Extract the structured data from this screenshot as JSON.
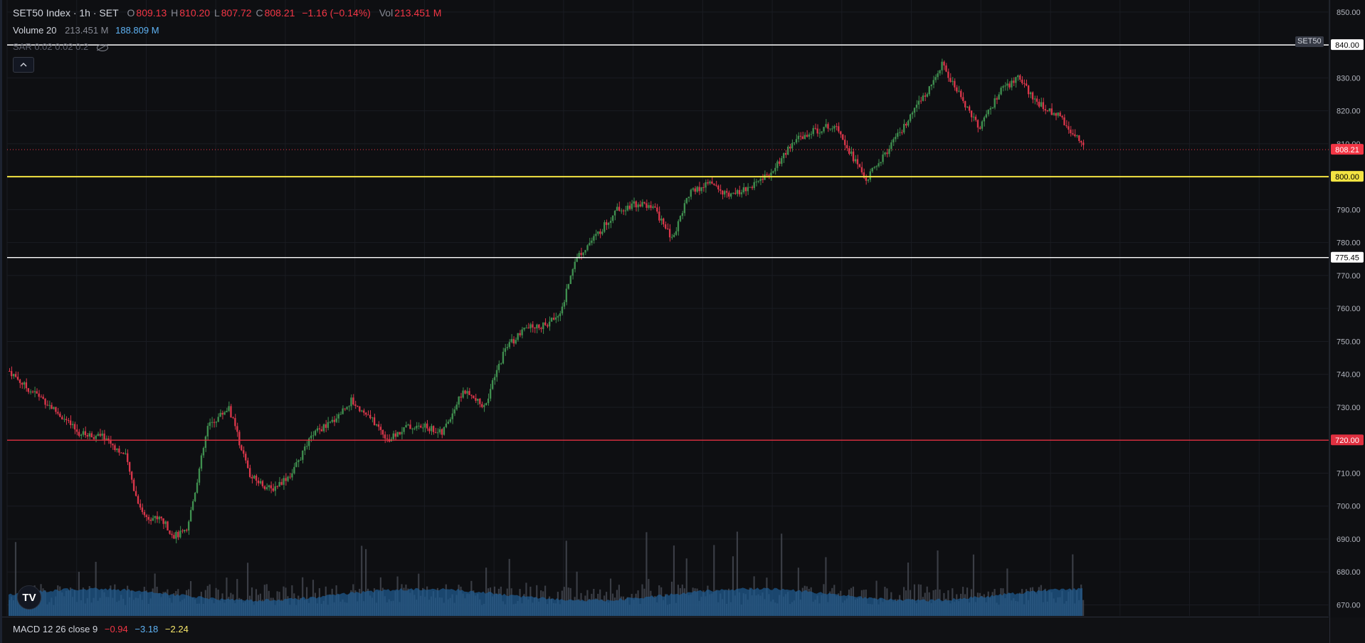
{
  "header": {
    "symbol": "SET50 Index · 1h · SET",
    "o_label": "O",
    "o": "809.13",
    "h_label": "H",
    "h": "810.20",
    "l_label": "L",
    "l": "807.72",
    "c_label": "C",
    "c": "808.21",
    "change": "−1.16 (−0.14%)",
    "vol_label": "Vol",
    "vol": "213.451 M"
  },
  "volume_legend": {
    "label": "Volume 20",
    "value1": "213.451 M",
    "value2": "188.809 M"
  },
  "sar_legend": {
    "label": "SAR 0.02 0.02 0.2"
  },
  "macd_legend": {
    "label": "MACD 12 26 close 9",
    "v1": "−0.94",
    "v2": "−3.18",
    "v3": "−2.24"
  },
  "symbol_tag": "SET50",
  "logo_text": "TV",
  "colors": {
    "up": "#26a69a",
    "up_candle": "#3f8f4f",
    "down": "#d9364a",
    "volume": "#4a4e57",
    "volume_ma": "#1f5e96",
    "line_white": "#ffffff",
    "line_yellow": "#f4e442",
    "line_red": "#e03040",
    "last_price": "#f23645"
  },
  "chart_data": {
    "type": "candlestick",
    "y_axis_ticks": [
      "850.00",
      "840.00",
      "830.00",
      "820.00",
      "810.00",
      "800.00",
      "790.00",
      "780.00",
      "770.00",
      "760.00",
      "750.00",
      "740.00",
      "730.00",
      "720.00",
      "710.00",
      "700.00",
      "690.00",
      "680.00",
      "670.00"
    ],
    "ylim": [
      666,
      853
    ],
    "grid": true,
    "horizontal_lines": [
      {
        "price": 840.0,
        "label": "840.00",
        "color": "white"
      },
      {
        "price": 800.0,
        "label": "800.00",
        "color": "yellow"
      },
      {
        "price": 775.45,
        "label": "775.45",
        "color": "white"
      },
      {
        "price": 720.0,
        "label": "720.00",
        "color": "red"
      }
    ],
    "last_price": {
      "value": 808.21,
      "label": "808.21"
    },
    "close_path_keypoints": [
      [
        0,
        741
      ],
      [
        8,
        736
      ],
      [
        15,
        733
      ],
      [
        25,
        727
      ],
      [
        33,
        722
      ],
      [
        45,
        721
      ],
      [
        55,
        715
      ],
      [
        60,
        703
      ],
      [
        64,
        697
      ],
      [
        72,
        696
      ],
      [
        78,
        691
      ],
      [
        84,
        692
      ],
      [
        94,
        724
      ],
      [
        104,
        730
      ],
      [
        114,
        709
      ],
      [
        124,
        705
      ],
      [
        134,
        710
      ],
      [
        144,
        722
      ],
      [
        152,
        725
      ],
      [
        162,
        732
      ],
      [
        172,
        726
      ],
      [
        180,
        720
      ],
      [
        188,
        724
      ],
      [
        198,
        724
      ],
      [
        205,
        722
      ],
      [
        215,
        735
      ],
      [
        225,
        730
      ],
      [
        235,
        748
      ],
      [
        245,
        754
      ],
      [
        255,
        755
      ],
      [
        262,
        760
      ],
      [
        268,
        775
      ],
      [
        278,
        782
      ],
      [
        288,
        790
      ],
      [
        298,
        792
      ],
      [
        306,
        790
      ],
      [
        314,
        781
      ],
      [
        322,
        795
      ],
      [
        332,
        798
      ],
      [
        342,
        794
      ],
      [
        352,
        797
      ],
      [
        362,
        802
      ],
      [
        372,
        811
      ],
      [
        382,
        814
      ],
      [
        392,
        816
      ],
      [
        398,
        808
      ],
      [
        406,
        799
      ],
      [
        414,
        806
      ],
      [
        424,
        815
      ],
      [
        434,
        825
      ],
      [
        442,
        834
      ],
      [
        450,
        825
      ],
      [
        460,
        815
      ],
      [
        470,
        826
      ],
      [
        478,
        830
      ],
      [
        488,
        822
      ],
      [
        498,
        818
      ],
      [
        506,
        812
      ],
      [
        510,
        808.2
      ]
    ],
    "candle_count": 510,
    "volume_profile": "random bars 0–20% of pane height with an overlaid moving average area"
  }
}
